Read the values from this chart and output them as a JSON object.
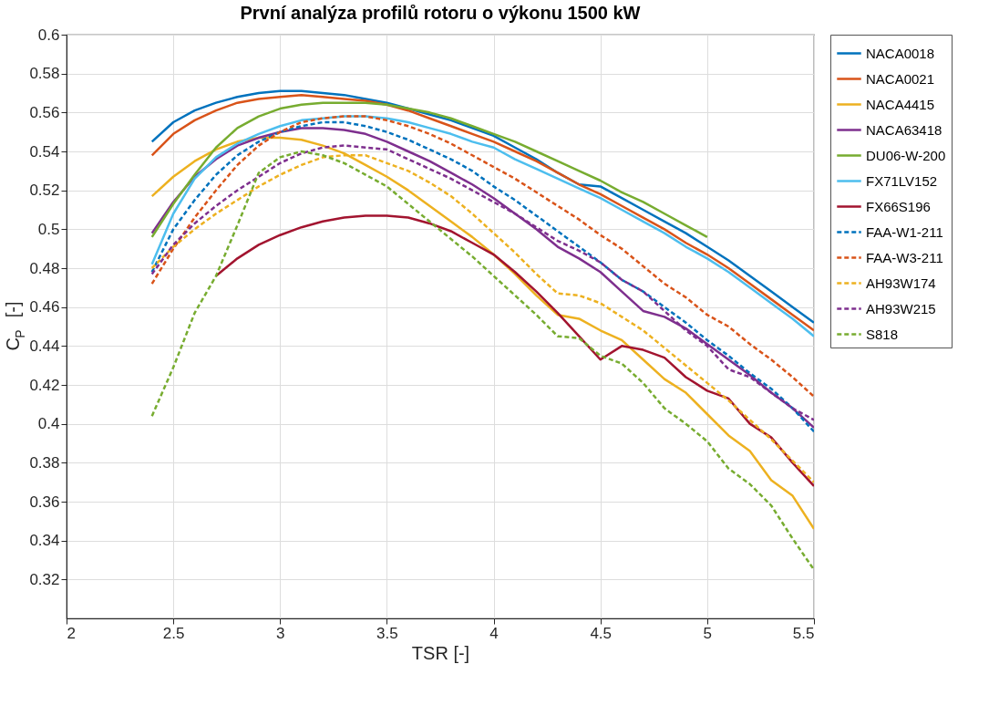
{
  "chart_data": {
    "type": "line",
    "title": "První analýza profilů rotoru o výkonu 1500 kW",
    "xlabel": "TSR [-]",
    "ylabel": "C$_{P}$ [-]",
    "x": [
      2.4,
      2.5,
      2.6,
      2.7,
      2.8,
      2.9,
      3.0,
      3.1,
      3.2,
      3.3,
      3.4,
      3.5,
      3.6,
      3.7,
      3.8,
      3.9,
      4.0,
      4.1,
      4.2,
      4.3,
      4.4,
      4.5,
      4.6,
      4.7,
      4.8,
      4.9,
      5.0,
      5.1,
      5.2,
      5.3,
      5.4,
      5.5
    ],
    "xlim": [
      2,
      5.5
    ],
    "xticks": [
      2,
      2.5,
      3,
      3.5,
      4,
      4.5,
      5,
      5.5
    ],
    "ylim": [
      0.3,
      0.6
    ],
    "yticks": [
      0.32,
      0.34,
      0.36,
      0.38,
      0.4,
      0.42,
      0.44,
      0.46,
      0.48,
      0.5,
      0.52,
      0.54,
      0.56,
      0.58,
      0.6
    ],
    "grid": true,
    "legend": "top right",
    "marker": "none",
    "series": [
      {
        "name": "NACA0018",
        "color": "#0072bd",
        "line_style": "solid",
        "values": [
          0.545,
          0.555,
          0.561,
          0.565,
          0.568,
          0.57,
          0.571,
          0.571,
          0.57,
          0.569,
          0.567,
          0.565,
          0.562,
          0.559,
          0.556,
          0.552,
          0.548,
          0.542,
          0.536,
          0.529,
          0.523,
          0.522,
          0.516,
          0.51,
          0.504,
          0.498,
          0.491,
          0.484,
          0.476,
          0.468,
          0.46,
          0.452
        ]
      },
      {
        "name": "NACA0021",
        "color": "#d95319",
        "line_style": "solid",
        "values": [
          0.538,
          0.549,
          0.556,
          0.561,
          0.565,
          0.567,
          0.568,
          0.569,
          0.568,
          0.567,
          0.566,
          0.564,
          0.561,
          0.557,
          0.553,
          0.549,
          0.545,
          0.54,
          0.535,
          0.529,
          0.523,
          0.518,
          0.512,
          0.506,
          0.5,
          0.493,
          0.487,
          0.48,
          0.472,
          0.464,
          0.456,
          0.448
        ]
      },
      {
        "name": "NACA4415",
        "color": "#edb120",
        "line_style": "solid",
        "values": [
          0.517,
          0.527,
          0.535,
          0.541,
          0.545,
          0.547,
          0.547,
          0.546,
          0.543,
          0.539,
          0.533,
          0.527,
          0.52,
          0.512,
          0.504,
          0.496,
          0.487,
          0.477,
          0.466,
          0.456,
          0.454,
          0.448,
          0.443,
          0.433,
          0.423,
          0.416,
          0.405,
          0.394,
          0.386,
          0.371,
          0.363,
          0.346
        ]
      },
      {
        "name": "NACA63418",
        "color": "#7e2f8e",
        "line_style": "solid",
        "values": [
          0.498,
          0.514,
          0.527,
          0.536,
          0.543,
          0.547,
          0.55,
          0.552,
          0.552,
          0.551,
          0.549,
          0.545,
          0.54,
          0.535,
          0.529,
          0.523,
          0.516,
          0.508,
          0.5,
          0.491,
          0.485,
          0.478,
          0.468,
          0.458,
          0.455,
          0.449,
          0.441,
          0.433,
          0.425,
          0.416,
          0.408,
          0.398
        ]
      },
      {
        "name": "DU06-W-200",
        "color": "#77ac30",
        "line_style": "solid",
        "values": [
          0.496,
          0.513,
          0.528,
          0.542,
          0.552,
          0.558,
          0.562,
          0.564,
          0.565,
          0.565,
          0.565,
          0.564,
          0.562,
          0.56,
          0.557,
          0.553,
          0.549,
          0.545,
          0.54,
          0.535,
          0.53,
          0.525,
          0.519,
          0.514,
          0.508,
          0.502,
          0.496,
          null,
          null,
          null,
          null,
          null
        ]
      },
      {
        "name": "FX71LV152",
        "color": "#4dbeee",
        "line_style": "solid",
        "values": [
          0.482,
          0.508,
          0.526,
          0.537,
          0.544,
          0.549,
          0.553,
          0.556,
          0.557,
          0.558,
          0.558,
          0.557,
          0.555,
          0.552,
          0.549,
          0.545,
          0.542,
          0.536,
          0.531,
          0.526,
          0.521,
          0.516,
          0.51,
          0.504,
          0.498,
          0.491,
          0.485,
          0.478,
          0.47,
          0.462,
          0.454,
          0.445
        ]
      },
      {
        "name": "FX66S196",
        "color": "#a2142f",
        "line_style": "solid",
        "values": [
          null,
          null,
          null,
          0.476,
          0.485,
          0.492,
          0.497,
          0.501,
          0.504,
          0.506,
          0.507,
          0.507,
          0.506,
          0.503,
          0.499,
          0.493,
          0.487,
          0.478,
          0.468,
          0.457,
          0.445,
          0.433,
          0.44,
          0.438,
          0.434,
          0.424,
          0.417,
          0.413,
          0.4,
          0.393,
          0.38,
          0.368
        ]
      },
      {
        "name": "FAA-W1-211",
        "color": "#0072bd",
        "line_style": "dashed",
        "values": [
          0.478,
          0.5,
          0.515,
          0.528,
          0.538,
          0.545,
          0.55,
          0.553,
          0.555,
          0.555,
          0.553,
          0.55,
          0.546,
          0.541,
          0.536,
          0.53,
          0.522,
          0.515,
          0.507,
          0.499,
          0.491,
          0.483,
          0.474,
          0.468,
          0.46,
          0.452,
          0.443,
          0.435,
          0.426,
          0.418,
          0.408,
          0.396
        ]
      },
      {
        "name": "FAA-W3-211",
        "color": "#d95319",
        "line_style": "dashed",
        "values": [
          0.472,
          0.49,
          0.506,
          0.52,
          0.533,
          0.543,
          0.55,
          0.555,
          0.557,
          0.558,
          0.558,
          0.556,
          0.553,
          0.549,
          0.544,
          0.538,
          0.532,
          0.526,
          0.519,
          0.512,
          0.505,
          0.497,
          0.49,
          0.481,
          0.472,
          0.465,
          0.456,
          0.45,
          0.441,
          0.433,
          0.424,
          0.414
        ]
      },
      {
        "name": "AH93W174",
        "color": "#edb120",
        "line_style": "dashed",
        "values": [
          0.48,
          0.491,
          0.5,
          0.508,
          0.515,
          0.522,
          0.528,
          0.533,
          0.537,
          0.538,
          0.538,
          0.534,
          0.53,
          0.524,
          0.517,
          0.508,
          0.498,
          0.488,
          0.477,
          0.467,
          0.466,
          0.462,
          0.455,
          0.448,
          0.439,
          0.43,
          0.421,
          0.412,
          0.402,
          0.392,
          0.381,
          0.37
        ]
      },
      {
        "name": "AH93W215",
        "color": "#7e2f8e",
        "line_style": "dashed",
        "values": [
          0.477,
          0.492,
          0.503,
          0.512,
          0.52,
          0.527,
          0.534,
          0.539,
          0.542,
          0.543,
          0.542,
          0.541,
          0.536,
          0.531,
          0.526,
          0.52,
          0.514,
          0.508,
          0.501,
          0.494,
          0.489,
          0.483,
          0.474,
          0.468,
          0.458,
          0.448,
          0.44,
          0.428,
          0.424,
          0.416,
          0.408,
          0.402
        ]
      },
      {
        "name": "S818",
        "color": "#77ac30",
        "line_style": "dashed",
        "values": [
          0.404,
          0.429,
          0.457,
          0.476,
          0.502,
          0.529,
          0.537,
          0.54,
          0.538,
          0.534,
          0.528,
          0.522,
          0.513,
          0.504,
          0.495,
          0.486,
          0.476,
          0.466,
          0.456,
          0.445,
          0.444,
          0.435,
          0.431,
          0.421,
          0.408,
          0.4,
          0.391,
          0.377,
          0.369,
          0.358,
          0.341,
          0.325
        ]
      }
    ]
  }
}
